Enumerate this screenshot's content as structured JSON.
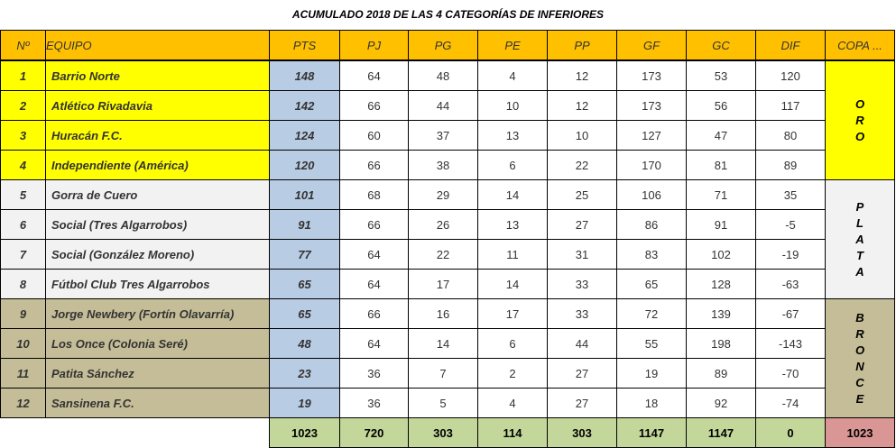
{
  "title": "ACUMULADO 2018 DE LAS 4 CATEGORÍAS DE INFERIORES",
  "headers": [
    "Nº",
    "EQUIPO",
    "PTS",
    "PJ",
    "PG",
    "PE",
    "PP",
    "GF",
    "GC",
    "DIF",
    "COPA ..."
  ],
  "rows": [
    [
      "1",
      "Barrio Norte",
      "148",
      "64",
      "48",
      "4",
      "12",
      "173",
      "53",
      "120"
    ],
    [
      "2",
      "Atlético Rivadavia",
      "142",
      "66",
      "44",
      "10",
      "12",
      "173",
      "56",
      "117"
    ],
    [
      "3",
      "Huracán F.C.",
      "124",
      "60",
      "37",
      "13",
      "10",
      "127",
      "47",
      "80"
    ],
    [
      "4",
      "Independiente (América)",
      "120",
      "66",
      "38",
      "6",
      "22",
      "170",
      "81",
      "89"
    ],
    [
      "5",
      "Gorra de Cuero",
      "101",
      "68",
      "29",
      "14",
      "25",
      "106",
      "71",
      "35"
    ],
    [
      "6",
      "Social (Tres Algarrobos)",
      "91",
      "66",
      "26",
      "13",
      "27",
      "86",
      "91",
      "-5"
    ],
    [
      "7",
      "Social (González Moreno)",
      "77",
      "64",
      "22",
      "11",
      "31",
      "83",
      "102",
      "-19"
    ],
    [
      "8",
      "Fútbol Club Tres Algarrobos",
      "65",
      "64",
      "17",
      "14",
      "33",
      "65",
      "128",
      "-63"
    ],
    [
      "9",
      "Jorge Newbery (Fortín Olavarría)",
      "65",
      "66",
      "16",
      "17",
      "33",
      "72",
      "139",
      "-67"
    ],
    [
      "10",
      "Los Once (Colonia Seré)",
      "48",
      "64",
      "14",
      "6",
      "44",
      "55",
      "198",
      "-143"
    ],
    [
      "11",
      "Patita Sánchez",
      "23",
      "36",
      "7",
      "2",
      "27",
      "19",
      "89",
      "-70"
    ],
    [
      "12",
      "Sansinena F.C.",
      "19",
      "36",
      "5",
      "4",
      "27",
      "18",
      "92",
      "-74"
    ]
  ],
  "copas": [
    {
      "label": "ORO",
      "color": "#FFFF00",
      "rows": 4
    },
    {
      "label": "PLATA",
      "color": "#F2F2F2",
      "rows": 4
    },
    {
      "label": "BRONCE",
      "color": "#C4BD97",
      "rows": 4
    }
  ],
  "totals": [
    "1023",
    "720",
    "303",
    "114",
    "303",
    "1147",
    "1147",
    "0"
  ],
  "copa_total": "1023"
}
